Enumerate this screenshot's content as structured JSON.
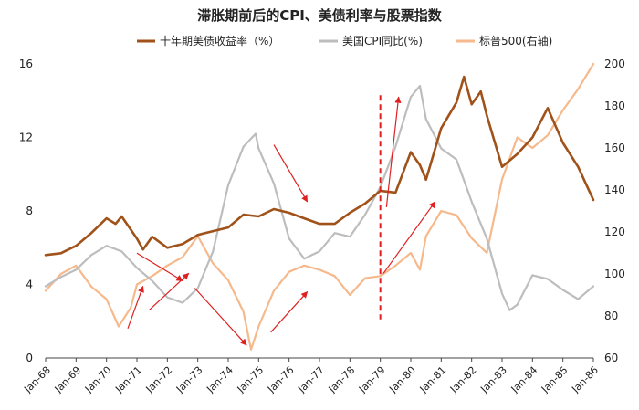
{
  "chart_data": {
    "type": "line",
    "title": "滞胀期前后的CPI、美债利率与股票指数",
    "x_categories": [
      "Jan-68",
      "Jan-69",
      "Jan-70",
      "Jan-71",
      "Jan-72",
      "Jan-73",
      "Jan-74",
      "Jan-75",
      "Jan-76",
      "Jan-77",
      "Jan-78",
      "Jan-79",
      "Jan-80",
      "Jan-81",
      "Jan-82",
      "Jan-83",
      "Jan-84",
      "Jan-85",
      "Jan-86"
    ],
    "y_left": {
      "range": [
        0,
        16
      ],
      "ticks": [
        "0",
        "4",
        "8",
        "12",
        "16"
      ]
    },
    "y_right": {
      "range": [
        60,
        200
      ],
      "ticks": [
        "60",
        "80",
        "100",
        "120",
        "140",
        "160",
        "180",
        "200"
      ]
    },
    "series": [
      {
        "name": "十年期美债收益率（%）",
        "axis": "left",
        "color": "#a0521a",
        "points": [
          [
            1968.0,
            5.6
          ],
          [
            1968.5,
            5.7
          ],
          [
            1969.0,
            6.1
          ],
          [
            1969.5,
            6.8
          ],
          [
            1970.0,
            7.6
          ],
          [
            1970.3,
            7.3
          ],
          [
            1970.5,
            7.7
          ],
          [
            1971.0,
            6.5
          ],
          [
            1971.2,
            5.9
          ],
          [
            1971.5,
            6.6
          ],
          [
            1972.0,
            6.0
          ],
          [
            1972.5,
            6.2
          ],
          [
            1973.0,
            6.7
          ],
          [
            1973.5,
            6.9
          ],
          [
            1974.0,
            7.1
          ],
          [
            1974.5,
            7.8
          ],
          [
            1975.0,
            7.7
          ],
          [
            1975.5,
            8.1
          ],
          [
            1976.0,
            7.9
          ],
          [
            1976.5,
            7.6
          ],
          [
            1977.0,
            7.3
          ],
          [
            1977.5,
            7.3
          ],
          [
            1978.0,
            7.9
          ],
          [
            1978.5,
            8.4
          ],
          [
            1979.0,
            9.1
          ],
          [
            1979.5,
            9.0
          ],
          [
            1980.0,
            11.2
          ],
          [
            1980.3,
            10.5
          ],
          [
            1980.5,
            9.7
          ],
          [
            1981.0,
            12.5
          ],
          [
            1981.5,
            13.9
          ],
          [
            1981.75,
            15.3
          ],
          [
            1982.0,
            13.8
          ],
          [
            1982.3,
            14.5
          ],
          [
            1982.5,
            13.2
          ],
          [
            1983.0,
            10.4
          ],
          [
            1983.5,
            11.1
          ],
          [
            1984.0,
            12.0
          ],
          [
            1984.5,
            13.6
          ],
          [
            1985.0,
            11.7
          ],
          [
            1985.5,
            10.4
          ],
          [
            1986.0,
            8.6
          ]
        ]
      },
      {
        "name": "美国CPI同比(%)",
        "axis": "left",
        "color": "#bdbdbd",
        "points": [
          [
            1968.0,
            3.9
          ],
          [
            1968.5,
            4.4
          ],
          [
            1969.0,
            4.8
          ],
          [
            1969.5,
            5.6
          ],
          [
            1970.0,
            6.1
          ],
          [
            1970.5,
            5.8
          ],
          [
            1971.0,
            4.9
          ],
          [
            1971.5,
            4.2
          ],
          [
            1972.0,
            3.3
          ],
          [
            1972.5,
            3.0
          ],
          [
            1973.0,
            3.8
          ],
          [
            1973.5,
            5.8
          ],
          [
            1974.0,
            9.4
          ],
          [
            1974.5,
            11.5
          ],
          [
            1974.9,
            12.2
          ],
          [
            1975.0,
            11.4
          ],
          [
            1975.5,
            9.5
          ],
          [
            1976.0,
            6.5
          ],
          [
            1976.5,
            5.4
          ],
          [
            1977.0,
            5.8
          ],
          [
            1977.5,
            6.8
          ],
          [
            1978.0,
            6.6
          ],
          [
            1978.5,
            7.8
          ],
          [
            1979.0,
            9.3
          ],
          [
            1979.5,
            11.5
          ],
          [
            1980.0,
            14.2
          ],
          [
            1980.3,
            14.8
          ],
          [
            1980.5,
            13.0
          ],
          [
            1981.0,
            11.4
          ],
          [
            1981.5,
            10.8
          ],
          [
            1982.0,
            8.5
          ],
          [
            1982.5,
            6.5
          ],
          [
            1983.0,
            3.5
          ],
          [
            1983.25,
            2.6
          ],
          [
            1983.5,
            2.9
          ],
          [
            1984.0,
            4.5
          ],
          [
            1984.5,
            4.3
          ],
          [
            1985.0,
            3.7
          ],
          [
            1985.5,
            3.2
          ],
          [
            1986.0,
            3.9
          ]
        ]
      },
      {
        "name": "标普500(右轴)",
        "axis": "right",
        "color": "#f5b98c",
        "points": [
          [
            1968.0,
            92
          ],
          [
            1968.5,
            100
          ],
          [
            1969.0,
            104
          ],
          [
            1969.5,
            94
          ],
          [
            1970.0,
            88
          ],
          [
            1970.4,
            75
          ],
          [
            1970.8,
            84
          ],
          [
            1971.0,
            95
          ],
          [
            1971.5,
            99
          ],
          [
            1972.0,
            104
          ],
          [
            1972.5,
            108
          ],
          [
            1973.0,
            118
          ],
          [
            1973.5,
            105
          ],
          [
            1974.0,
            97
          ],
          [
            1974.5,
            82
          ],
          [
            1974.75,
            64
          ],
          [
            1975.0,
            75
          ],
          [
            1975.5,
            92
          ],
          [
            1976.0,
            101
          ],
          [
            1976.5,
            104
          ],
          [
            1977.0,
            102
          ],
          [
            1977.5,
            99
          ],
          [
            1978.0,
            90
          ],
          [
            1978.5,
            98
          ],
          [
            1979.0,
            99
          ],
          [
            1979.5,
            104
          ],
          [
            1980.0,
            110
          ],
          [
            1980.3,
            102
          ],
          [
            1980.5,
            118
          ],
          [
            1981.0,
            130
          ],
          [
            1981.5,
            128
          ],
          [
            1982.0,
            117
          ],
          [
            1982.5,
            110
          ],
          [
            1983.0,
            145
          ],
          [
            1983.5,
            165
          ],
          [
            1984.0,
            160
          ],
          [
            1984.5,
            166
          ],
          [
            1985.0,
            178
          ],
          [
            1985.5,
            188
          ],
          [
            1986.0,
            200
          ]
        ]
      }
    ],
    "annotations": [
      {
        "type": "dashed-vertical-line",
        "x": 1979.0,
        "color": "#e02020"
      },
      {
        "type": "arrow",
        "from": [
          1970.7,
          1.6
        ],
        "to": [
          1971.2,
          3.9
        ],
        "axis": "left",
        "color": "#e02020"
      },
      {
        "type": "arrow",
        "from": [
          1971.4,
          2.6
        ],
        "to": [
          1972.7,
          4.6
        ],
        "axis": "left",
        "color": "#e02020"
      },
      {
        "type": "arrow",
        "from": [
          1971.0,
          5.7
        ],
        "to": [
          1972.5,
          4.2
        ],
        "axis": "left",
        "color": "#e02020"
      },
      {
        "type": "arrow",
        "from": [
          1972.9,
          3.8
        ],
        "to": [
          1974.6,
          0.7
        ],
        "axis": "left",
        "color": "#e02020"
      },
      {
        "type": "arrow",
        "from": [
          1975.4,
          1.4
        ],
        "to": [
          1976.6,
          3.6
        ],
        "axis": "left",
        "color": "#e02020"
      },
      {
        "type": "arrow",
        "from": [
          1975.5,
          11.6
        ],
        "to": [
          1976.6,
          8.5
        ],
        "axis": "left",
        "color": "#e02020"
      },
      {
        "type": "arrow",
        "from": [
          1979.1,
          4.6
        ],
        "to": [
          1980.8,
          8.5
        ],
        "axis": "left",
        "color": "#e02020"
      },
      {
        "type": "arrow",
        "from": [
          1979.2,
          8.2
        ],
        "to": [
          1979.6,
          14.2
        ],
        "axis": "left",
        "color": "#e02020"
      }
    ]
  }
}
